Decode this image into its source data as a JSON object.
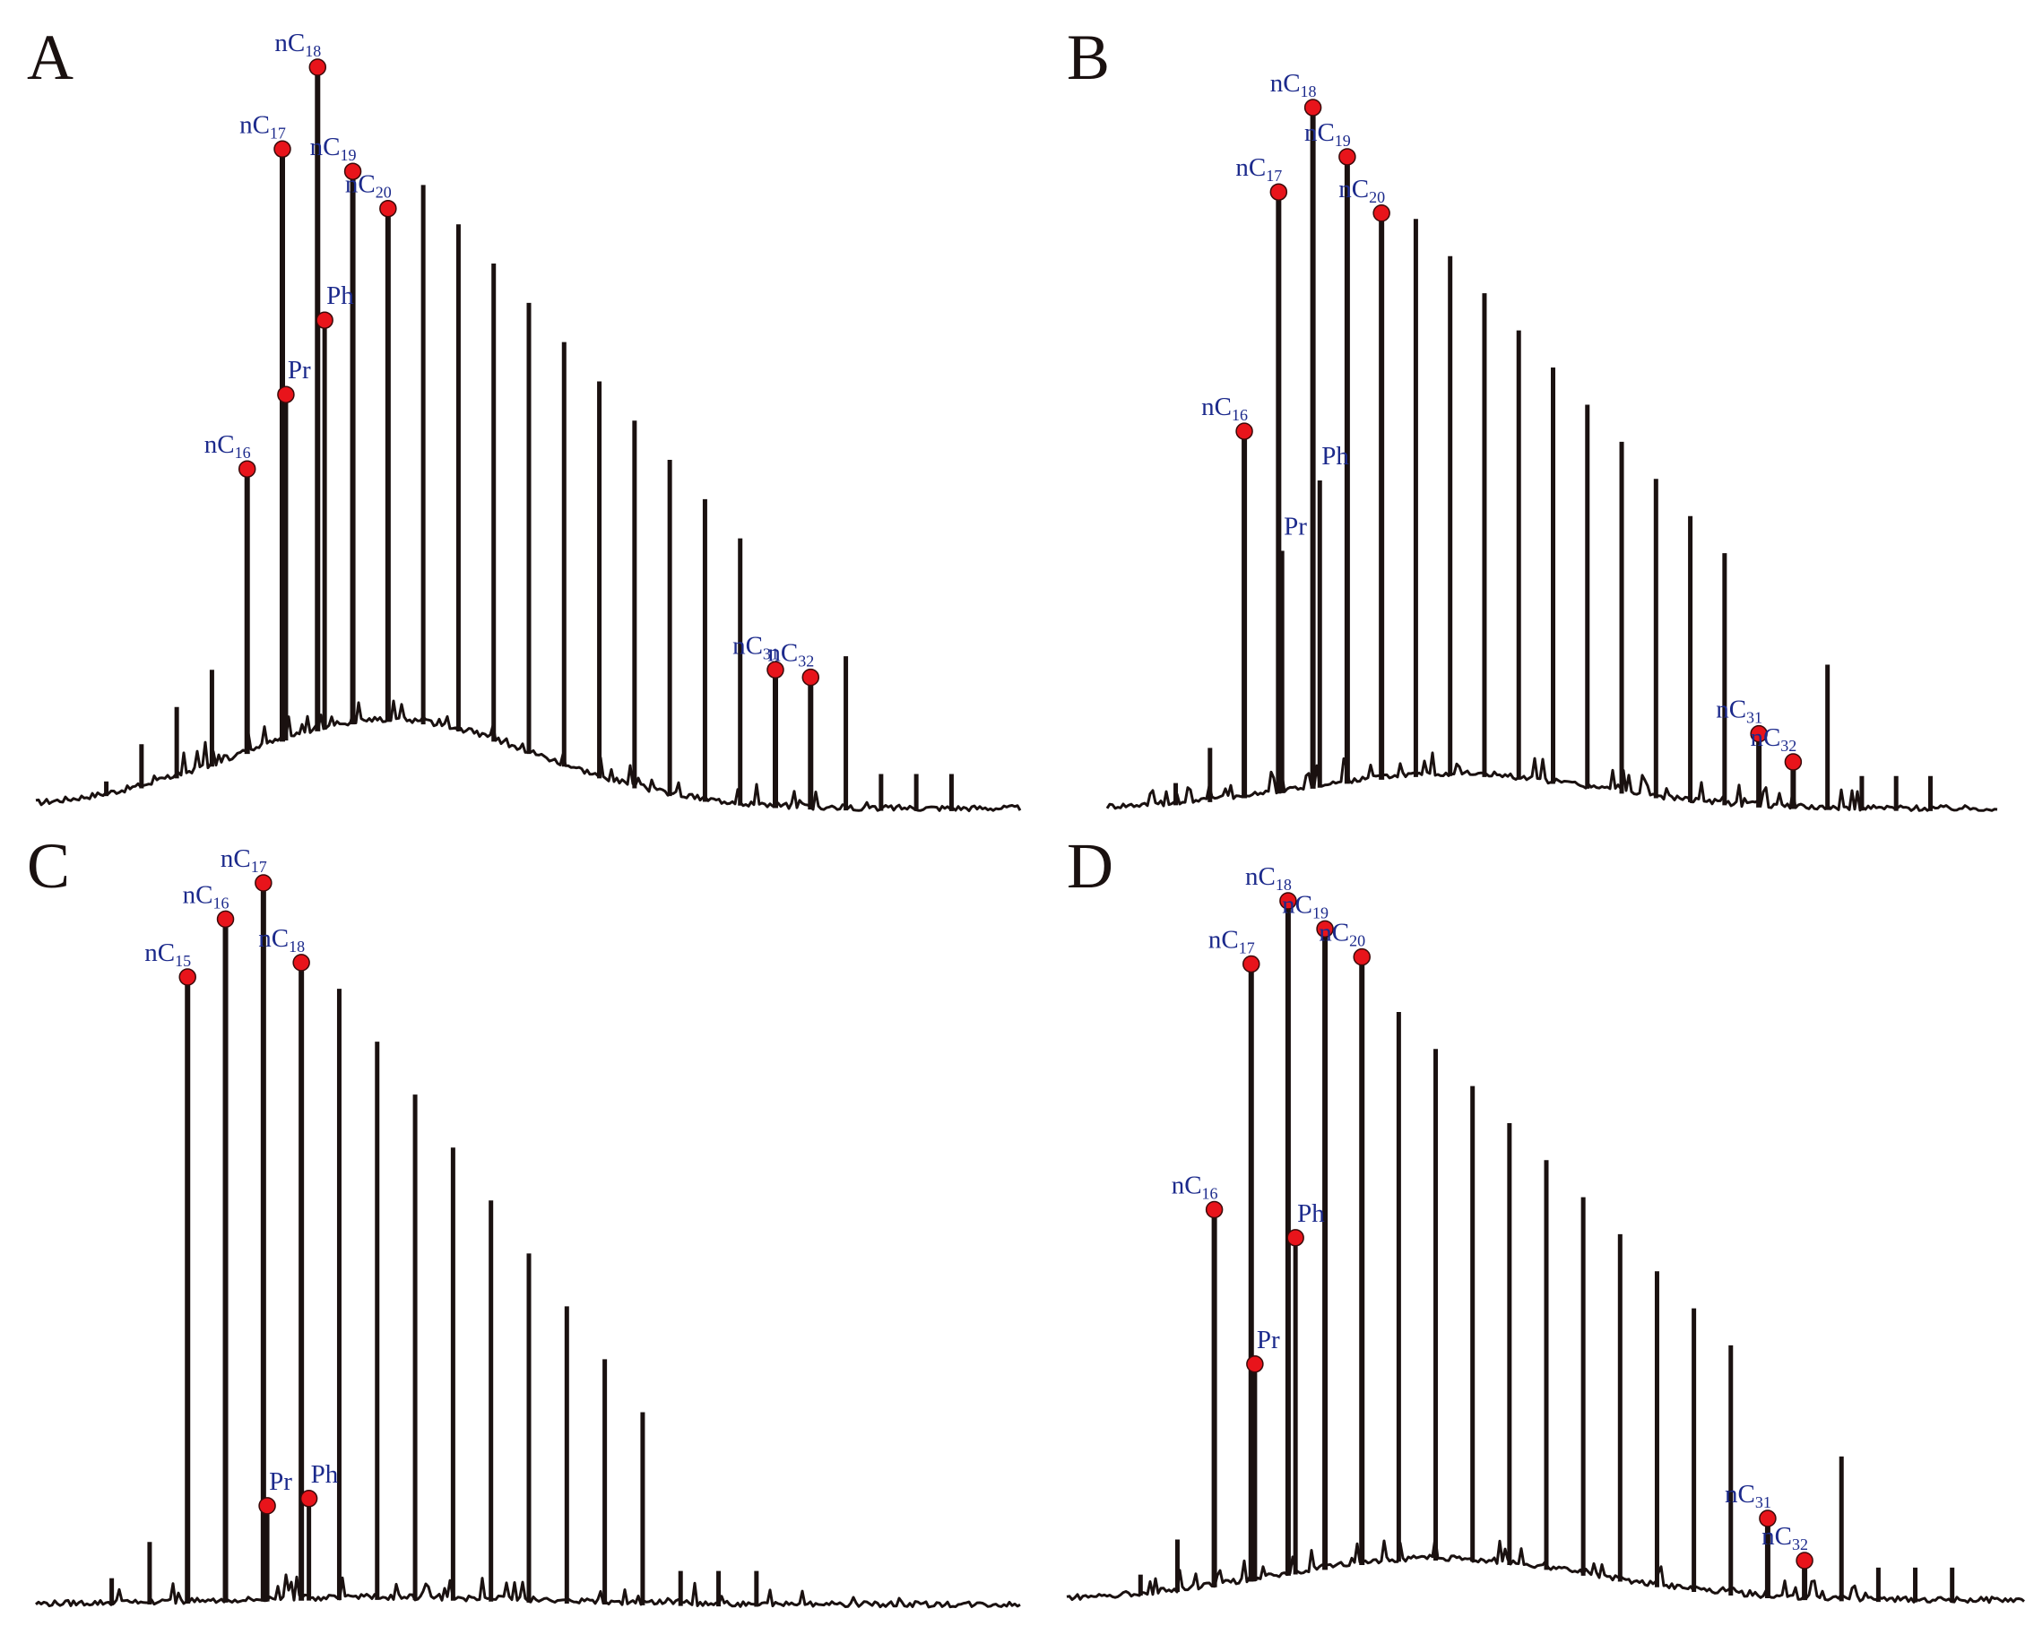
{
  "chart_data": [
    {
      "type": "line",
      "panel": "A",
      "title": "",
      "xlabel": "",
      "ylabel": "",
      "grid": false,
      "peaks": [
        {
          "label": "nC",
          "sub": "16",
          "x": 16,
          "y": 0.46
        },
        {
          "label": "Pr",
          "sub": "",
          "x": 17.1,
          "y": 0.56
        },
        {
          "label": "nC",
          "sub": "17",
          "x": 17,
          "y": 0.89
        },
        {
          "label": "Ph",
          "sub": "",
          "x": 18.2,
          "y": 0.66
        },
        {
          "label": "nC",
          "sub": "18",
          "x": 18,
          "y": 1.0
        },
        {
          "label": "nC",
          "sub": "19",
          "x": 19,
          "y": 0.86
        },
        {
          "label": "nC",
          "sub": "20",
          "x": 20,
          "y": 0.81
        },
        {
          "label": "nC",
          "sub": "31",
          "x": 31,
          "y": 0.19
        },
        {
          "label": "nC",
          "sub": "32",
          "x": 32,
          "y": 0.18
        }
      ]
    },
    {
      "type": "line",
      "panel": "B",
      "title": "",
      "xlabel": "",
      "ylabel": "",
      "grid": false,
      "peaks": [
        {
          "label": "nC",
          "sub": "16",
          "x": 16,
          "y": 0.54
        },
        {
          "label": "Pr",
          "sub": "",
          "x": 17.1,
          "y": 0.37
        },
        {
          "label": "nC",
          "sub": "17",
          "x": 17,
          "y": 0.88
        },
        {
          "label": "Ph",
          "sub": "",
          "x": 18.2,
          "y": 0.47
        },
        {
          "label": "nC",
          "sub": "18",
          "x": 18,
          "y": 1.0
        },
        {
          "label": "nC",
          "sub": "19",
          "x": 19,
          "y": 0.93
        },
        {
          "label": "nC",
          "sub": "20",
          "x": 20,
          "y": 0.85
        },
        {
          "label": "nC",
          "sub": "31",
          "x": 31,
          "y": 0.11
        },
        {
          "label": "nC",
          "sub": "32",
          "x": 32,
          "y": 0.07
        }
      ]
    },
    {
      "type": "line",
      "panel": "C",
      "title": "",
      "xlabel": "",
      "ylabel": "",
      "grid": false,
      "peaks": [
        {
          "label": "nC",
          "sub": "15",
          "x": 15,
          "y": 0.87
        },
        {
          "label": "nC",
          "sub": "16",
          "x": 16,
          "y": 0.95
        },
        {
          "label": "nC",
          "sub": "17",
          "x": 17,
          "y": 1.0
        },
        {
          "label": "Pr",
          "sub": "",
          "x": 17.1,
          "y": 0.14
        },
        {
          "label": "nC",
          "sub": "18",
          "x": 18,
          "y": 0.89
        },
        {
          "label": "Ph",
          "sub": "",
          "x": 18.2,
          "y": 0.15
        }
      ]
    },
    {
      "type": "line",
      "panel": "D",
      "title": "",
      "xlabel": "",
      "ylabel": "",
      "grid": false,
      "peaks": [
        {
          "label": "nC",
          "sub": "16",
          "x": 16,
          "y": 0.56
        },
        {
          "label": "Pr",
          "sub": "",
          "x": 17.1,
          "y": 0.34
        },
        {
          "label": "nC",
          "sub": "17",
          "x": 17,
          "y": 0.91
        },
        {
          "label": "Ph",
          "sub": "",
          "x": 18.2,
          "y": 0.52
        },
        {
          "label": "nC",
          "sub": "18",
          "x": 18,
          "y": 1.0
        },
        {
          "label": "nC",
          "sub": "19",
          "x": 19,
          "y": 0.96
        },
        {
          "label": "nC",
          "sub": "20",
          "x": 20,
          "y": 0.92
        },
        {
          "label": "nC",
          "sub": "31",
          "x": 31,
          "y": 0.12
        },
        {
          "label": "nC",
          "sub": "32",
          "x": 32,
          "y": 0.06
        }
      ]
    }
  ],
  "colors": {
    "trace": "#1a1110",
    "marker": "#e8141b",
    "label": "#1c2a8c",
    "panel_letter": "#1a1110"
  }
}
